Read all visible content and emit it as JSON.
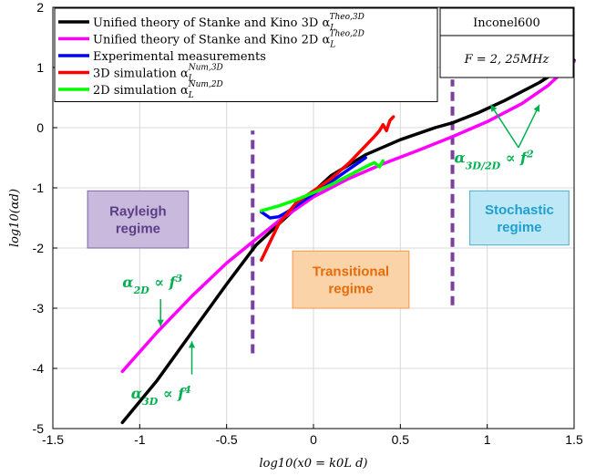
{
  "chart_data": {
    "type": "line",
    "xlabel": "log10(x0 = k0L d)",
    "ylabel": "log10(αd)",
    "xlim": [
      -1.5,
      1.5
    ],
    "ylim": [
      -5,
      2
    ],
    "x_ticks": [
      "-1.5",
      "-1",
      "-0.5",
      "0",
      "0.5",
      "1",
      "1.5"
    ],
    "y_ticks": [
      "-5",
      "-4",
      "-3",
      "-2",
      "-1",
      "0",
      "1",
      "2"
    ],
    "grid": true,
    "legend_position": "top-left",
    "series": [
      {
        "name": "Unified theory of Stanke and Kino 3D α_L^Theo,3D",
        "legend_text": "Unified theory of Stanke and Kino 3D α",
        "sub": "L",
        "sup": "Theo,3D",
        "color": "#000000",
        "x": [
          -1.1,
          -0.9,
          -0.7,
          -0.5,
          -0.33,
          -0.2,
          -0.05,
          0.1,
          0.3,
          0.5,
          0.7,
          0.8,
          0.95,
          1.1,
          1.3,
          1.5
        ],
        "y": [
          -4.9,
          -4.2,
          -3.4,
          -2.6,
          -1.95,
          -1.6,
          -1.2,
          -0.8,
          -0.45,
          -0.2,
          0.0,
          0.08,
          0.25,
          0.45,
          0.75,
          1.12
        ]
      },
      {
        "name": "Unified theory of Stanke and Kino 2D α_L^Theo,2D",
        "legend_text": "Unified theory of Stanke and Kino 2D α",
        "sub": "L",
        "sup": "Theo,2D",
        "color": "#ff00ff",
        "x": [
          -1.1,
          -0.9,
          -0.7,
          -0.5,
          -0.33,
          -0.2,
          0.0,
          0.2,
          0.4,
          0.6,
          0.8,
          1.0,
          1.2,
          1.35,
          1.5
        ],
        "y": [
          -4.05,
          -3.4,
          -2.8,
          -2.25,
          -1.85,
          -1.55,
          -1.15,
          -0.85,
          -0.6,
          -0.38,
          -0.15,
          0.1,
          0.4,
          0.7,
          1.1
        ]
      },
      {
        "name": "Experimental measurements",
        "legend_text": "Experimental measurements",
        "color": "#0000ff",
        "x": [
          -0.3,
          -0.25,
          -0.2,
          -0.15,
          -0.1,
          -0.05,
          0.0,
          0.05,
          0.1,
          0.15,
          0.2,
          0.25,
          0.3
        ],
        "y": [
          -1.4,
          -1.5,
          -1.48,
          -1.4,
          -1.3,
          -1.2,
          -1.1,
          -1.0,
          -0.9,
          -0.8,
          -0.7,
          -0.6,
          -0.5
        ]
      },
      {
        "name": "3D simulation α_L^Num,3D",
        "legend_text": "3D simulation α",
        "sub": "L",
        "sup": "Num,3D",
        "color": "#ff0000",
        "x": [
          -0.3,
          -0.25,
          -0.2,
          -0.1,
          0.0,
          0.1,
          0.2,
          0.3,
          0.35,
          0.38,
          0.4,
          0.42,
          0.44,
          0.46
        ],
        "y": [
          -2.2,
          -1.9,
          -1.6,
          -1.25,
          -1.05,
          -0.85,
          -0.6,
          -0.3,
          -0.15,
          -0.05,
          0.05,
          -0.05,
          0.12,
          0.18
        ]
      },
      {
        "name": "2D simulation α_L^Num,2D",
        "legend_text": "2D simulation α",
        "sub": "L",
        "sup": "Num,2D",
        "color": "#00ff00",
        "x": [
          -0.3,
          -0.2,
          -0.1,
          0.0,
          0.1,
          0.2,
          0.3,
          0.35,
          0.38,
          0.4
        ],
        "y": [
          -1.38,
          -1.3,
          -1.2,
          -1.08,
          -0.95,
          -0.8,
          -0.65,
          -0.58,
          -0.65,
          -0.55
        ]
      }
    ],
    "vlines": [
      {
        "x": -0.35,
        "y_from": -3.75,
        "y_to": -0.05,
        "color": "#7b3fa0"
      },
      {
        "x": 0.8,
        "y_from": -2.95,
        "y_to": 0.8,
        "color": "#7b3fa0"
      }
    ],
    "info_box": {
      "material": "Inconel600",
      "frequency": "F = 2, 25MHz"
    },
    "regions": [
      {
        "lines": [
          "Rayleigh",
          "regime"
        ],
        "x": -1.3,
        "y": -1.05,
        "x2": -0.72,
        "y2": -2.0,
        "fill": "#c9b9dd",
        "border": "#8064a2",
        "text_color": "#5b3f85"
      },
      {
        "lines": [
          "Transitional",
          "regime"
        ],
        "x": -0.12,
        "y": -2.05,
        "x2": 0.55,
        "y2": -3.0,
        "fill": "#fbd3a9",
        "border": "#f79646",
        "text_color": "#e46c0a"
      },
      {
        "lines": [
          "Stochastic",
          "regime"
        ],
        "x": 0.9,
        "y": -1.05,
        "x2": 1.47,
        "y2": -1.95,
        "fill": "#bfe8f7",
        "border": "#4bacc6",
        "text_color": "#1f9fd0"
      }
    ],
    "annotations": [
      {
        "text": "α",
        "sub": "2D",
        "tail": " ∝ f",
        "sup": "3",
        "x": -1.1,
        "y": -2.65
      },
      {
        "text": "α",
        "sub": "3D",
        "tail": " ∝ f",
        "sup": "4",
        "x": -1.05,
        "y": -4.5
      },
      {
        "text": "α",
        "sub": "3D/2D",
        "tail": " ∝ f",
        "sup": "2",
        "x": 0.81,
        "y": -0.58
      }
    ],
    "anno_color": "#00b050"
  }
}
